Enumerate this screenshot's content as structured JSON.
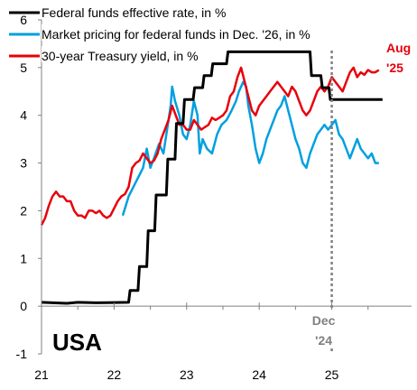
{
  "chart_data": {
    "type": "line",
    "country_label": "USA",
    "xlim": [
      2021.0,
      2026.1
    ],
    "ylim": [
      -1,
      6
    ],
    "x_ticks": [
      {
        "value": 2021,
        "label": "21"
      },
      {
        "value": 2022,
        "label": "22"
      },
      {
        "value": 2023,
        "label": "23"
      },
      {
        "value": 2024,
        "label": "24"
      },
      {
        "value": 2025,
        "label": "25"
      }
    ],
    "y_ticks": [
      {
        "value": -1,
        "label": "-1"
      },
      {
        "value": 0,
        "label": "0"
      },
      {
        "value": 1,
        "label": "1"
      },
      {
        "value": 2,
        "label": "2"
      },
      {
        "value": 3,
        "label": "3"
      },
      {
        "value": 4,
        "label": "4"
      },
      {
        "value": 5,
        "label": "5"
      },
      {
        "value": 6,
        "label": "6"
      }
    ],
    "legend_position": "top-left",
    "series": [
      {
        "name": "Federal funds effective rate, in %",
        "color": "#000000",
        "step": true,
        "points": [
          [
            2021.0,
            0.08
          ],
          [
            2021.35,
            0.06
          ],
          [
            2021.5,
            0.08
          ],
          [
            2021.75,
            0.07
          ],
          [
            2022.2,
            0.08
          ],
          [
            2022.22,
            0.33
          ],
          [
            2022.33,
            0.33
          ],
          [
            2022.35,
            0.83
          ],
          [
            2022.45,
            0.83
          ],
          [
            2022.47,
            1.58
          ],
          [
            2022.56,
            1.58
          ],
          [
            2022.58,
            2.33
          ],
          [
            2022.72,
            2.33
          ],
          [
            2022.74,
            3.08
          ],
          [
            2022.84,
            3.08
          ],
          [
            2022.86,
            3.83
          ],
          [
            2022.95,
            3.83
          ],
          [
            2022.97,
            4.33
          ],
          [
            2023.09,
            4.33
          ],
          [
            2023.11,
            4.58
          ],
          [
            2023.22,
            4.58
          ],
          [
            2023.24,
            4.83
          ],
          [
            2023.34,
            4.83
          ],
          [
            2023.36,
            5.08
          ],
          [
            2023.55,
            5.08
          ],
          [
            2023.57,
            5.33
          ],
          [
            2024.7,
            5.33
          ],
          [
            2024.72,
            4.83
          ],
          [
            2024.85,
            4.83
          ],
          [
            2024.87,
            4.58
          ],
          [
            2024.96,
            4.58
          ],
          [
            2024.98,
            4.33
          ],
          [
            2025.7,
            4.33
          ]
        ]
      },
      {
        "name": "Market pricing for federal funds in Dec. '26, in %",
        "color": "#00a0e0",
        "points": [
          [
            2022.12,
            1.9
          ],
          [
            2022.2,
            2.3
          ],
          [
            2022.3,
            2.6
          ],
          [
            2022.4,
            2.9
          ],
          [
            2022.45,
            3.3
          ],
          [
            2022.5,
            2.9
          ],
          [
            2022.55,
            3.1
          ],
          [
            2022.62,
            3.4
          ],
          [
            2022.68,
            3.2
          ],
          [
            2022.72,
            3.6
          ],
          [
            2022.78,
            4.2
          ],
          [
            2022.8,
            4.6
          ],
          [
            2022.84,
            4.3
          ],
          [
            2022.9,
            4.0
          ],
          [
            2022.95,
            3.6
          ],
          [
            2023.0,
            3.5
          ],
          [
            2023.05,
            3.8
          ],
          [
            2023.1,
            4.3
          ],
          [
            2023.15,
            4.0
          ],
          [
            2023.18,
            3.2
          ],
          [
            2023.22,
            3.5
          ],
          [
            2023.28,
            3.3
          ],
          [
            2023.35,
            3.2
          ],
          [
            2023.42,
            3.6
          ],
          [
            2023.48,
            3.8
          ],
          [
            2023.55,
            3.9
          ],
          [
            2023.62,
            4.1
          ],
          [
            2023.68,
            4.3
          ],
          [
            2023.72,
            4.5
          ],
          [
            2023.78,
            4.7
          ],
          [
            2023.82,
            4.6
          ],
          [
            2023.85,
            4.2
          ],
          [
            2023.9,
            3.8
          ],
          [
            2023.95,
            3.3
          ],
          [
            2024.0,
            3.0
          ],
          [
            2024.05,
            3.2
          ],
          [
            2024.1,
            3.5
          ],
          [
            2024.15,
            3.7
          ],
          [
            2024.2,
            3.9
          ],
          [
            2024.25,
            4.1
          ],
          [
            2024.3,
            4.2
          ],
          [
            2024.35,
            4.4
          ],
          [
            2024.4,
            4.1
          ],
          [
            2024.45,
            3.8
          ],
          [
            2024.5,
            3.5
          ],
          [
            2024.55,
            3.3
          ],
          [
            2024.6,
            3.0
          ],
          [
            2024.65,
            2.9
          ],
          [
            2024.7,
            3.2
          ],
          [
            2024.75,
            3.4
          ],
          [
            2024.8,
            3.6
          ],
          [
            2024.85,
            3.7
          ],
          [
            2024.9,
            3.8
          ],
          [
            2024.95,
            3.7
          ],
          [
            2025.0,
            3.8
          ],
          [
            2025.05,
            3.9
          ],
          [
            2025.1,
            3.6
          ],
          [
            2025.15,
            3.5
          ],
          [
            2025.2,
            3.3
          ],
          [
            2025.25,
            3.1
          ],
          [
            2025.3,
            3.3
          ],
          [
            2025.35,
            3.5
          ],
          [
            2025.4,
            3.3
          ],
          [
            2025.45,
            3.2
          ],
          [
            2025.5,
            3.1
          ],
          [
            2025.55,
            3.2
          ],
          [
            2025.6,
            3.0
          ],
          [
            2025.65,
            3.0
          ]
        ]
      },
      {
        "name": "30-year Treasury yield, in %",
        "color": "#e8000b",
        "points": [
          [
            2021.0,
            1.7
          ],
          [
            2021.05,
            1.85
          ],
          [
            2021.1,
            2.1
          ],
          [
            2021.15,
            2.3
          ],
          [
            2021.2,
            2.4
          ],
          [
            2021.25,
            2.3
          ],
          [
            2021.3,
            2.3
          ],
          [
            2021.35,
            2.2
          ],
          [
            2021.4,
            2.2
          ],
          [
            2021.45,
            2.0
          ],
          [
            2021.5,
            1.9
          ],
          [
            2021.55,
            1.9
          ],
          [
            2021.6,
            1.85
          ],
          [
            2021.65,
            2.0
          ],
          [
            2021.7,
            2.0
          ],
          [
            2021.75,
            1.95
          ],
          [
            2021.8,
            2.0
          ],
          [
            2021.85,
            1.9
          ],
          [
            2021.9,
            1.85
          ],
          [
            2021.95,
            1.9
          ],
          [
            2022.0,
            2.05
          ],
          [
            2022.05,
            2.2
          ],
          [
            2022.1,
            2.3
          ],
          [
            2022.15,
            2.35
          ],
          [
            2022.2,
            2.5
          ],
          [
            2022.25,
            2.9
          ],
          [
            2022.3,
            3.0
          ],
          [
            2022.35,
            3.05
          ],
          [
            2022.4,
            3.2
          ],
          [
            2022.45,
            3.1
          ],
          [
            2022.5,
            3.0
          ],
          [
            2022.55,
            3.05
          ],
          [
            2022.6,
            3.2
          ],
          [
            2022.65,
            3.5
          ],
          [
            2022.7,
            3.7
          ],
          [
            2022.75,
            3.9
          ],
          [
            2022.8,
            4.2
          ],
          [
            2022.85,
            4.0
          ],
          [
            2022.9,
            3.8
          ],
          [
            2022.95,
            3.8
          ],
          [
            2023.0,
            3.7
          ],
          [
            2023.05,
            3.7
          ],
          [
            2023.1,
            3.9
          ],
          [
            2023.15,
            3.8
          ],
          [
            2023.2,
            3.7
          ],
          [
            2023.25,
            3.75
          ],
          [
            2023.3,
            3.8
          ],
          [
            2023.35,
            3.95
          ],
          [
            2023.4,
            3.9
          ],
          [
            2023.45,
            3.95
          ],
          [
            2023.5,
            4.0
          ],
          [
            2023.55,
            4.1
          ],
          [
            2023.6,
            4.4
          ],
          [
            2023.65,
            4.5
          ],
          [
            2023.7,
            4.8
          ],
          [
            2023.75,
            5.0
          ],
          [
            2023.8,
            4.7
          ],
          [
            2023.85,
            4.4
          ],
          [
            2023.9,
            4.1
          ],
          [
            2023.95,
            4.0
          ],
          [
            2024.0,
            4.2
          ],
          [
            2024.05,
            4.3
          ],
          [
            2024.1,
            4.4
          ],
          [
            2024.15,
            4.5
          ],
          [
            2024.2,
            4.6
          ],
          [
            2024.25,
            4.7
          ],
          [
            2024.3,
            4.6
          ],
          [
            2024.35,
            4.5
          ],
          [
            2024.4,
            4.4
          ],
          [
            2024.45,
            4.6
          ],
          [
            2024.5,
            4.5
          ],
          [
            2024.55,
            4.3
          ],
          [
            2024.6,
            4.1
          ],
          [
            2024.65,
            4.0
          ],
          [
            2024.7,
            4.1
          ],
          [
            2024.75,
            4.3
          ],
          [
            2024.8,
            4.5
          ],
          [
            2024.85,
            4.6
          ],
          [
            2024.9,
            4.5
          ],
          [
            2024.95,
            4.6
          ],
          [
            2025.0,
            4.8
          ],
          [
            2025.05,
            4.7
          ],
          [
            2025.1,
            4.6
          ],
          [
            2025.15,
            4.5
          ],
          [
            2025.2,
            4.7
          ],
          [
            2025.25,
            4.9
          ],
          [
            2025.3,
            5.0
          ],
          [
            2025.35,
            4.8
          ],
          [
            2025.4,
            4.9
          ],
          [
            2025.45,
            4.85
          ],
          [
            2025.5,
            4.95
          ],
          [
            2025.55,
            4.9
          ],
          [
            2025.6,
            4.9
          ],
          [
            2025.65,
            4.95
          ]
        ]
      }
    ],
    "annotations": [
      {
        "name": "aug-25-label",
        "lines": [
          "Aug",
          "'25"
        ],
        "color": "#e8000b"
      },
      {
        "name": "dec-24-label",
        "lines": [
          "Dec",
          "'24"
        ],
        "color": "#808080",
        "at_x": 2025.0,
        "dashed_line": true
      }
    ]
  }
}
